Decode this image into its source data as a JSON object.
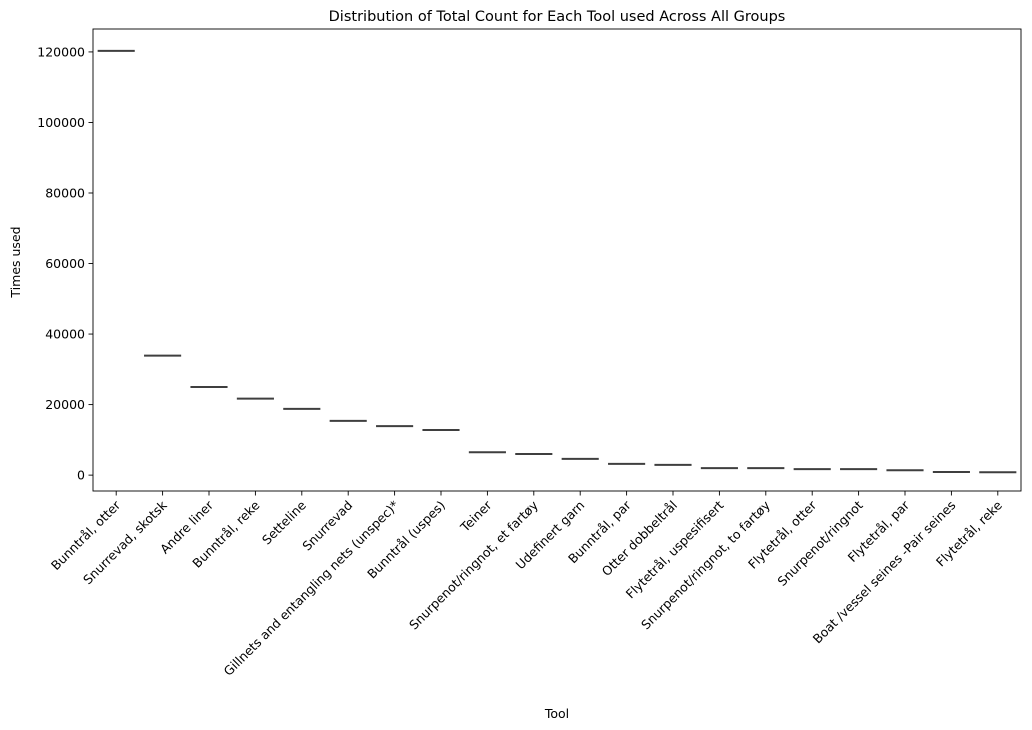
{
  "chart_data": {
    "type": "box",
    "title": "Distribution of Total Count for Each Tool used Across All Groups",
    "xlabel": "Tool",
    "ylabel": "Times used",
    "ylim": [
      -4500,
      126500
    ],
    "yticks": [
      0,
      20000,
      40000,
      60000,
      80000,
      100000,
      120000
    ],
    "grid": false,
    "legend": "none",
    "mark_color": "#3f3f3f",
    "categories": [
      "Bunntrål, otter",
      "Snurrevad, skotsk",
      "Andre liner",
      "Bunntrål, reke",
      "Setteline",
      "Snurrevad",
      "Gillnets and entangling nets (unspec)*",
      "Bunntrål (uspes)",
      "Teiner",
      "Snurpenot/ringnot, et fartøy",
      "Udefinert garn",
      "Bunntrål, par",
      "Otter dobbeltrål",
      "Flytetrål, uspesifisert",
      "Snurpenot/ringnot, to fartøy",
      "Flytetrål, otter",
      "Snurpenot/ringnot",
      "Flytetrål, par",
      "Boat /vessel seines -Pair seines",
      "Flytetrål, reke"
    ],
    "values": [
      120300,
      33900,
      25000,
      21700,
      18800,
      15400,
      13900,
      12800,
      6500,
      6000,
      4600,
      3200,
      2900,
      2000,
      2000,
      1700,
      1700,
      1400,
      900,
      800
    ]
  }
}
